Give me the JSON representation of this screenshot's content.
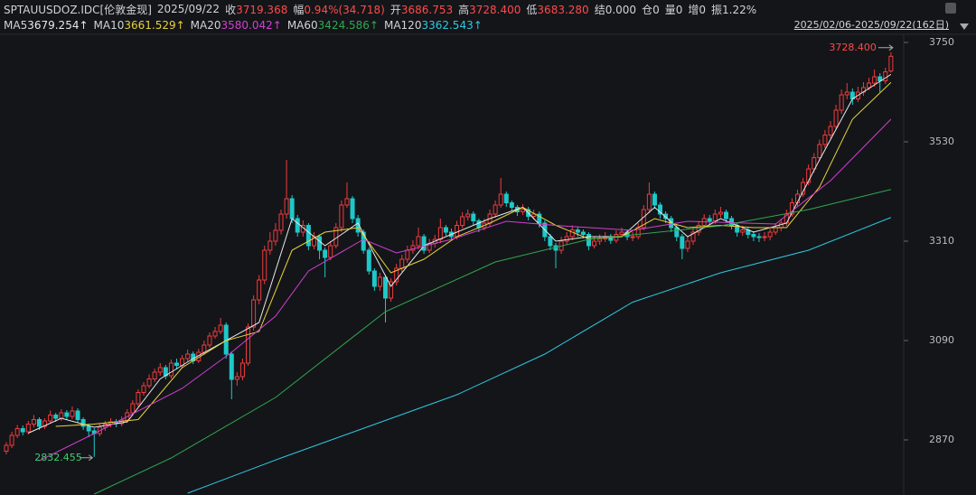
{
  "header": {
    "symbol": "SPTAUUSDOZ.IDC[伦敦金现]",
    "date": "2025/09/22",
    "fields": [
      {
        "label": "收",
        "value": "3719.368"
      },
      {
        "label": "幅",
        "value": "0.94%(34.718)"
      },
      {
        "label": "开",
        "value": "3686.753"
      },
      {
        "label": "高",
        "value": "3728.400"
      },
      {
        "label": "低",
        "value": "3683.280"
      },
      {
        "label": "结",
        "value": "0.000"
      },
      {
        "label": "仓",
        "value": "0"
      },
      {
        "label": "量",
        "value": "0"
      },
      {
        "label": "增",
        "value": "0"
      },
      {
        "label": "振",
        "value": "1.22%"
      }
    ],
    "range": "2025/02/06-2025/09/22(162日)"
  },
  "chart_data": {
    "type": "candlestick",
    "up_color": "#f03c3c",
    "down_color": "#1fc8c8",
    "ylim": [
      2748,
      3768
    ],
    "yticks": [
      3750,
      3530,
      3310,
      3090,
      2870
    ],
    "max_label": "3728.400",
    "min_label": "2832.455",
    "candles": {
      "open": [
        2845,
        2858,
        2880,
        2895,
        2888,
        2905,
        2915,
        2900,
        2912,
        2925,
        2918,
        2930,
        2922,
        2934,
        2915,
        2900,
        2890,
        2884,
        2898,
        2905,
        2910,
        2906,
        2914,
        2930,
        2950,
        2975,
        2990,
        3005,
        3020,
        3030,
        3012,
        3040,
        3035,
        3050,
        3060,
        3045,
        3064,
        3080,
        3100,
        3110,
        3124,
        3060,
        3004,
        3010,
        3040,
        3120,
        3180,
        3224,
        3290,
        3310,
        3334,
        3370,
        3404,
        3360,
        3330,
        3345,
        3300,
        3320,
        3290,
        3274,
        3300,
        3340,
        3390,
        3404,
        3360,
        3330,
        3290,
        3244,
        3210,
        3230,
        3184,
        3220,
        3250,
        3270,
        3290,
        3300,
        3320,
        3290,
        3305,
        3314,
        3340,
        3330,
        3320,
        3345,
        3364,
        3370,
        3355,
        3340,
        3350,
        3370,
        3390,
        3414,
        3395,
        3385,
        3375,
        3380,
        3365,
        3370,
        3350,
        3320,
        3300,
        3290,
        3310,
        3320,
        3335,
        3330,
        3325,
        3300,
        3310,
        3315,
        3320,
        3312,
        3325,
        3330,
        3320,
        3320,
        3340,
        3380,
        3414,
        3390,
        3370,
        3360,
        3340,
        3320,
        3294,
        3310,
        3330,
        3345,
        3360,
        3355,
        3370,
        3374,
        3360,
        3345,
        3330,
        3335,
        3325,
        3320,
        3318,
        3320,
        3330,
        3340,
        3350,
        3370,
        3395,
        3414,
        3440,
        3470,
        3495,
        3524,
        3545,
        3564,
        3600,
        3634,
        3640,
        3625,
        3640,
        3650,
        3660,
        3674,
        3665,
        3686.753
      ],
      "high": [
        2865,
        2888,
        2903,
        2902,
        2912,
        2925,
        2920,
        2918,
        2935,
        2930,
        2938,
        2936,
        2944,
        2940,
        2920,
        2906,
        2896,
        2905,
        2912,
        2918,
        2916,
        2922,
        2938,
        2958,
        2982,
        2998,
        3015,
        3028,
        3040,
        3036,
        3048,
        3050,
        3058,
        3070,
        3066,
        3072,
        3090,
        3108,
        3120,
        3140,
        3130,
        3066,
        3020,
        3050,
        3128,
        3190,
        3235,
        3300,
        3330,
        3350,
        3380,
        3490,
        3412,
        3368,
        3356,
        3350,
        3330,
        3325,
        3296,
        3310,
        3350,
        3400,
        3440,
        3410,
        3368,
        3336,
        3296,
        3250,
        3240,
        3236,
        3228,
        3260,
        3280,
        3300,
        3312,
        3340,
        3326,
        3315,
        3324,
        3360,
        3346,
        3338,
        3355,
        3374,
        3380,
        3376,
        3360,
        3360,
        3380,
        3400,
        3450,
        3420,
        3400,
        3390,
        3392,
        3386,
        3380,
        3376,
        3356,
        3326,
        3306,
        3320,
        3330,
        3345,
        3342,
        3336,
        3330,
        3320,
        3325,
        3330,
        3326,
        3334,
        3340,
        3336,
        3330,
        3350,
        3390,
        3440,
        3420,
        3396,
        3376,
        3366,
        3346,
        3326,
        3320,
        3340,
        3355,
        3370,
        3368,
        3380,
        3386,
        3380,
        3366,
        3350,
        3344,
        3340,
        3332,
        3328,
        3330,
        3338,
        3350,
        3360,
        3380,
        3405,
        3424,
        3450,
        3480,
        3505,
        3535,
        3556,
        3576,
        3612,
        3646,
        3660,
        3648,
        3652,
        3662,
        3672,
        3690,
        3682,
        3694,
        3728.4
      ],
      "low": [
        2838,
        2852,
        2874,
        2880,
        2882,
        2898,
        2892,
        2894,
        2906,
        2910,
        2912,
        2915,
        2916,
        2908,
        2892,
        2876,
        2832.455,
        2878,
        2890,
        2898,
        2898,
        2900,
        2908,
        2924,
        2944,
        2968,
        2984,
        2998,
        3012,
        3004,
        3006,
        3026,
        3028,
        3044,
        3038,
        3040,
        3058,
        3074,
        3094,
        3104,
        3050,
        2960,
        2990,
        3002,
        3034,
        3112,
        3170,
        3215,
        3280,
        3300,
        3325,
        3360,
        3350,
        3320,
        3320,
        3290,
        3292,
        3270,
        3230,
        3268,
        3294,
        3330,
        3384,
        3350,
        3320,
        3282,
        3236,
        3200,
        3200,
        3130,
        3176,
        3212,
        3242,
        3262,
        3282,
        3292,
        3282,
        3284,
        3296,
        3306,
        3322,
        3312,
        3314,
        3338,
        3356,
        3346,
        3330,
        3334,
        3342,
        3362,
        3384,
        3386,
        3376,
        3366,
        3368,
        3356,
        3358,
        3340,
        3310,
        3290,
        3250,
        3282,
        3302,
        3312,
        3320,
        3316,
        3290,
        3294,
        3302,
        3308,
        3304,
        3306,
        3318,
        3312,
        3310,
        3314,
        3334,
        3372,
        3382,
        3360,
        3350,
        3330,
        3310,
        3270,
        3286,
        3302,
        3322,
        3338,
        3346,
        3348,
        3362,
        3352,
        3336,
        3320,
        3322,
        3316,
        3310,
        3308,
        3310,
        3312,
        3324,
        3332,
        3344,
        3364,
        3388,
        3408,
        3434,
        3462,
        3488,
        3516,
        3538,
        3556,
        3592,
        3624,
        3612,
        3618,
        3632,
        3644,
        3652,
        3640,
        3658,
        3683.28
      ],
      "close": [
        2858,
        2880,
        2895,
        2888,
        2905,
        2915,
        2900,
        2912,
        2925,
        2918,
        2930,
        2922,
        2934,
        2915,
        2900,
        2890,
        2884,
        2898,
        2905,
        2910,
        2906,
        2914,
        2930,
        2950,
        2975,
        2990,
        3005,
        3020,
        3030,
        3012,
        3040,
        3035,
        3050,
        3060,
        3045,
        3064,
        3080,
        3100,
        3110,
        3124,
        3060,
        3004,
        3010,
        3040,
        3120,
        3180,
        3224,
        3290,
        3310,
        3334,
        3370,
        3404,
        3360,
        3330,
        3345,
        3300,
        3320,
        3290,
        3274,
        3300,
        3340,
        3390,
        3404,
        3360,
        3330,
        3290,
        3244,
        3210,
        3230,
        3184,
        3220,
        3250,
        3270,
        3290,
        3300,
        3320,
        3290,
        3305,
        3314,
        3340,
        3330,
        3320,
        3345,
        3364,
        3370,
        3355,
        3340,
        3350,
        3370,
        3390,
        3414,
        3395,
        3385,
        3375,
        3380,
        3365,
        3370,
        3350,
        3320,
        3300,
        3290,
        3310,
        3320,
        3335,
        3330,
        3325,
        3300,
        3310,
        3315,
        3320,
        3312,
        3325,
        3330,
        3320,
        3320,
        3340,
        3380,
        3414,
        3390,
        3370,
        3360,
        3340,
        3320,
        3294,
        3310,
        3330,
        3345,
        3360,
        3355,
        3370,
        3374,
        3360,
        3345,
        3330,
        3335,
        3325,
        3320,
        3318,
        3320,
        3330,
        3340,
        3350,
        3370,
        3395,
        3414,
        3440,
        3470,
        3495,
        3524,
        3545,
        3564,
        3600,
        3634,
        3640,
        3625,
        3640,
        3650,
        3660,
        3674,
        3665,
        3685,
        3719.368
      ]
    },
    "series": [
      {
        "name": "MA5",
        "color": "#e8e8e8",
        "value_label": "3679.254↑",
        "x": [
          4,
          10,
          16,
          22,
          28,
          34,
          40,
          46,
          52,
          58,
          64,
          70,
          76,
          82,
          88,
          94,
          100,
          106,
          112,
          118,
          124,
          130,
          136,
          142,
          148,
          154,
          161
        ],
        "values": [
          2885,
          2918,
          2898,
          2910,
          3005,
          3050,
          3090,
          3130,
          3360,
          3300,
          3350,
          3210,
          3300,
          3330,
          3360,
          3385,
          3310,
          3320,
          3320,
          3385,
          3320,
          3360,
          3330,
          3350,
          3490,
          3625,
          3679.254
        ]
      },
      {
        "name": "MA10",
        "color": "#e8d23a",
        "value_label": "3661.529↑",
        "x": [
          9,
          16,
          24,
          32,
          40,
          46,
          52,
          58,
          64,
          70,
          76,
          82,
          88,
          94,
          100,
          106,
          112,
          118,
          124,
          130,
          136,
          142,
          148,
          154,
          161
        ],
        "values": [
          2900,
          2905,
          2915,
          3030,
          3090,
          3110,
          3290,
          3330,
          3340,
          3240,
          3270,
          3320,
          3350,
          3385,
          3345,
          3315,
          3320,
          3360,
          3340,
          3345,
          3340,
          3340,
          3430,
          3580,
          3661.529
        ]
      },
      {
        "name": "MA20",
        "color": "#d040d0",
        "value_label": "3580.042↑",
        "x": [
          6,
          16,
          32,
          41,
          49,
          55,
          65,
          71,
          81,
          91,
          101,
          114,
          124,
          140,
          150,
          161
        ],
        "values": [
          2824,
          2884,
          2984,
          3064,
          3144,
          3244,
          3314,
          3284,
          3314,
          3354,
          3344,
          3334,
          3354,
          3348,
          3444,
          3580.042
        ]
      },
      {
        "name": "MA60",
        "color": "#2fa84f",
        "value_label": "3424.586↑",
        "x": [
          16,
          30,
          49,
          69,
          89,
          106,
          130,
          146,
          161
        ],
        "values": [
          2750,
          2830,
          2964,
          3154,
          3264,
          3314,
          3344,
          3380,
          3424.586
        ]
      },
      {
        "name": "MA120",
        "color": "#2ec8e0",
        "value_label": "3362.543↑",
        "x": [
          33,
          50,
          66,
          82,
          98,
          114,
          130,
          146,
          161
        ],
        "values": [
          2752,
          2830,
          2900,
          2970,
          3060,
          3175,
          3240,
          3290,
          3362.543
        ]
      }
    ]
  }
}
